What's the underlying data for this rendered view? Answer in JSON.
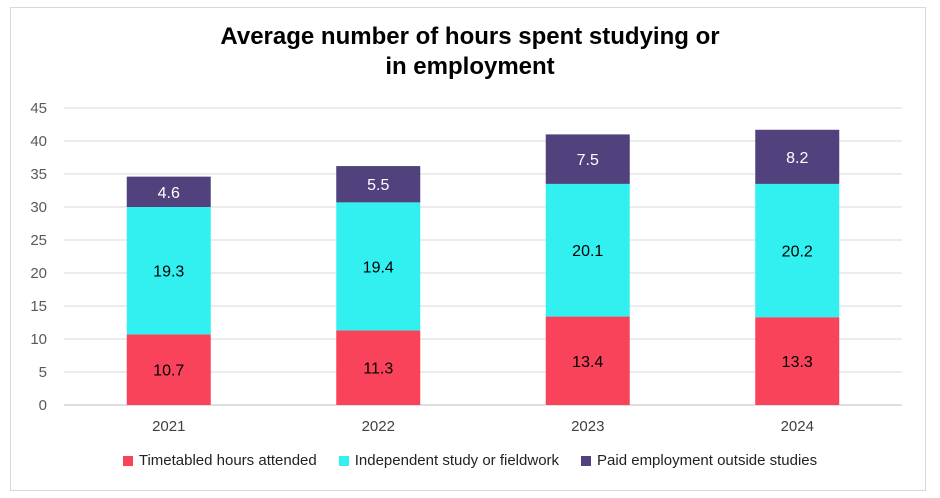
{
  "chart_data": {
    "type": "bar",
    "stacked": true,
    "title": "Average number of hours spent studying or in employment",
    "title_lines": [
      "Average number of hours spent studying or",
      "in employment"
    ],
    "categories": [
      "2021",
      "2022",
      "2023",
      "2024"
    ],
    "series": [
      {
        "name": "Timetabled hours attended",
        "color": "#f8435a",
        "values": [
          10.7,
          11.3,
          13.4,
          13.3
        ]
      },
      {
        "name": "Independent study or fieldwork",
        "color": "#33f0f0",
        "values": [
          19.3,
          19.4,
          20.1,
          20.2
        ]
      },
      {
        "name": "Paid employment outside studies",
        "color": "#51427e",
        "values": [
          4.6,
          5.5,
          7.5,
          8.2
        ]
      }
    ],
    "y_ticks": [
      "0",
      "5",
      "10",
      "15",
      "20",
      "25",
      "30",
      "35",
      "40",
      "45"
    ],
    "ylim": [
      0,
      45
    ],
    "grid": true,
    "legend_position": "bottom",
    "label_colors": [
      "#000000",
      "#000000",
      "#ffffff"
    ]
  }
}
